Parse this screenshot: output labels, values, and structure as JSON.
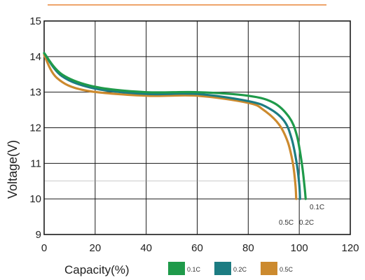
{
  "chart_data": {
    "type": "line",
    "xlabel": "Capacity(%)",
    "ylabel": "Voltage(V)",
    "xlim": [
      0,
      120
    ],
    "ylim": [
      9,
      15
    ],
    "x_ticks": [
      "0",
      "20",
      "40",
      "60",
      "80",
      "100",
      "120"
    ],
    "y_ticks": [
      "9",
      "10",
      "11",
      "12",
      "13",
      "14",
      "15"
    ],
    "grid": true,
    "legend_position": "bottom",
    "series": [
      {
        "name": "0.1C",
        "color": "#1f9a4a",
        "points": [
          [
            0,
            14.1
          ],
          [
            7,
            13.5
          ],
          [
            20,
            13.15
          ],
          [
            40,
            13.0
          ],
          [
            60,
            13.0
          ],
          [
            80,
            12.9
          ],
          [
            90,
            12.7
          ],
          [
            96,
            12.3
          ],
          [
            99,
            11.8
          ],
          [
            101,
            11.0
          ],
          [
            102,
            10.4
          ],
          [
            102.5,
            10.0
          ]
        ]
      },
      {
        "name": "0.2C",
        "color": "#1c7c82",
        "points": [
          [
            0,
            14.1
          ],
          [
            7,
            13.45
          ],
          [
            20,
            13.1
          ],
          [
            40,
            12.95
          ],
          [
            60,
            12.95
          ],
          [
            80,
            12.75
          ],
          [
            88,
            12.55
          ],
          [
            94,
            12.2
          ],
          [
            97,
            11.7
          ],
          [
            99,
            11.0
          ],
          [
            100,
            10.4
          ],
          [
            100.3,
            10.0
          ]
        ]
      },
      {
        "name": "0.5C",
        "color": "#cc8a2e",
        "points": [
          [
            0,
            14.05
          ],
          [
            5,
            13.4
          ],
          [
            16,
            13.05
          ],
          [
            40,
            12.9
          ],
          [
            60,
            12.9
          ],
          [
            80,
            12.7
          ],
          [
            86,
            12.5
          ],
          [
            92,
            12.1
          ],
          [
            95.5,
            11.6
          ],
          [
            97.5,
            11.0
          ],
          [
            98.5,
            10.4
          ],
          [
            98.8,
            10.0
          ]
        ]
      }
    ],
    "annotations": [
      "0.1C",
      "0.2C",
      "0.5C"
    ]
  }
}
